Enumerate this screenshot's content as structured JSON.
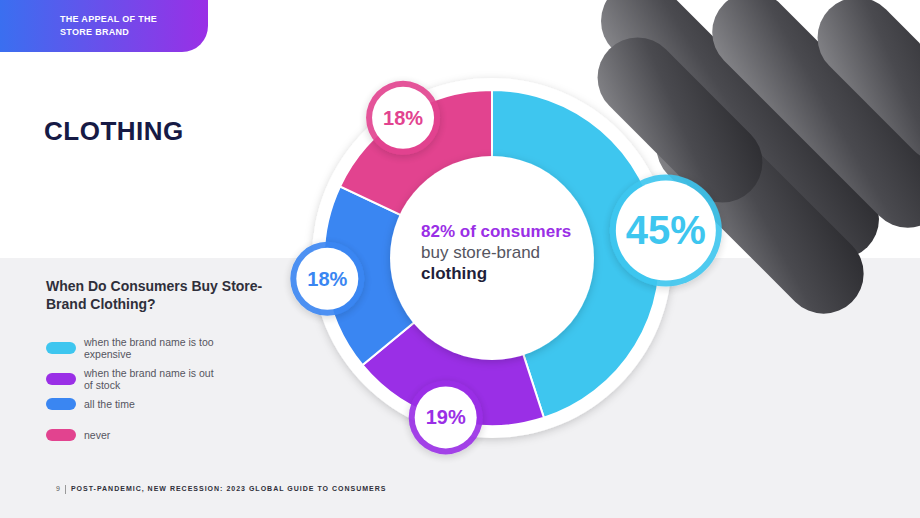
{
  "page": {
    "section": "THE APPEAL OF THE STORE BRAND",
    "heading": "CLOTHING",
    "footer_page": "9",
    "footer_text": "POST-PANDEMIC, NEW RECESSION: 2023 GLOBAL GUIDE TO CONSUMERS"
  },
  "chart_data": {
    "type": "donut",
    "title": "When Do Consumers Buy Store-Brand Clothing?",
    "annotation": [
      "82% of consumers",
      "buy store-brand",
      "clothing"
    ],
    "categories": [
      "when the brand name is too expensive",
      "when the brand name is out of stock",
      "all the time",
      "never"
    ],
    "values": [
      45,
      19,
      18,
      18
    ],
    "value_labels": [
      "45%",
      "19%",
      "18%",
      "18%"
    ],
    "colors": [
      "#3ec6ef",
      "#9a2fe6",
      "#3a86f2",
      "#e2438f"
    ],
    "data_labels": true,
    "legend": "left"
  }
}
